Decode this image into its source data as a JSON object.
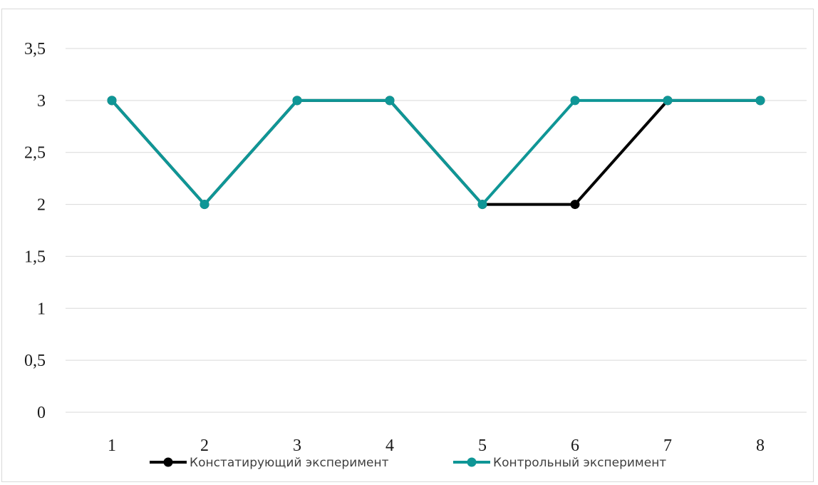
{
  "chart_data": {
    "type": "line",
    "title": "",
    "xlabel": "",
    "ylabel": "",
    "categories": [
      "1",
      "2",
      "3",
      "4",
      "5",
      "6",
      "7",
      "8"
    ],
    "yticks": [
      "0",
      "0,5",
      "1",
      "1,5",
      "2",
      "2,5",
      "3",
      "3,5"
    ],
    "ylim": [
      0,
      3.5
    ],
    "grid": true,
    "legend_position": "bottom",
    "series": [
      {
        "name": "Констатирующий эксперимент",
        "color": "#000000",
        "values": [
          3,
          2,
          3,
          3,
          2,
          2,
          3,
          3
        ]
      },
      {
        "name": "Контрольный эксперимент",
        "color": "#0f9696",
        "values": [
          3,
          2,
          3,
          3,
          2,
          3,
          3,
          3
        ]
      }
    ]
  }
}
